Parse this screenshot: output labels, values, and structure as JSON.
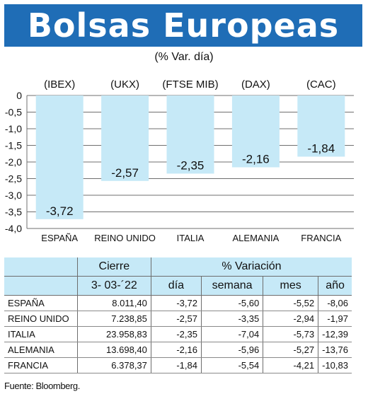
{
  "header": {
    "title": "Bolsas Europeas",
    "subtitle": "(% Var. día)"
  },
  "chart_data": {
    "type": "bar",
    "indices": [
      "(IBEX)",
      "(UKX)",
      "(FTSE MIB)",
      "(DAX)",
      "(CAC)"
    ],
    "categories": [
      "ESPAÑA",
      "REINO UNIDO",
      "ITALIA",
      "ALEMANIA",
      "FRANCIA"
    ],
    "values": [
      -3.72,
      -2.57,
      -2.35,
      -2.16,
      -1.84
    ],
    "value_labels": [
      "-3,72",
      "-2,57",
      "-2,35",
      "-2,16",
      "-1,84"
    ],
    "y_ticks": [
      0,
      -0.5,
      -1.0,
      -1.5,
      -2.0,
      -2.5,
      -3.0,
      -3.5,
      -4.0
    ],
    "y_tick_labels": [
      "0",
      "-0,5",
      "-1,0",
      "-1,5",
      "-2,0",
      "-2,5",
      "-3,0",
      "-3,5",
      "-4,0"
    ],
    "ylim": [
      -4.0,
      0
    ],
    "grid": true,
    "bar_color": "#c6e9f7"
  },
  "table": {
    "header_cierre": "Cierre",
    "header_variacion": "% Variación",
    "date": "3- 03-´22",
    "col_dia": "día",
    "col_semana": "semana",
    "col_mes": "mes",
    "col_anio": "año",
    "rows": [
      {
        "country": "ESPAÑA",
        "cierre": "8.011,40",
        "dia": "-3,72",
        "semana": "-5,60",
        "mes": "-5,52",
        "anio": "-8,06"
      },
      {
        "country": "REINO UNIDO",
        "cierre": "7.238,85",
        "dia": "-2,57",
        "semana": "-3,35",
        "mes": "-2,94",
        "anio": "-1,97"
      },
      {
        "country": "ITALIA",
        "cierre": "23.958,83",
        "dia": "-2,35",
        "semana": "-7,04",
        "mes": "-5,73",
        "anio": "-12,39"
      },
      {
        "country": "ALEMANIA",
        "cierre": "13.698,40",
        "dia": "-2,16",
        "semana": "-5,96",
        "mes": "-5,27",
        "anio": "-13,76"
      },
      {
        "country": "FRANCIA",
        "cierre": "6.378,37",
        "dia": "-1,84",
        "semana": "-5,54",
        "mes": "-4,21",
        "anio": "-10,83"
      }
    ]
  },
  "source": "Fuente: Bloomberg."
}
